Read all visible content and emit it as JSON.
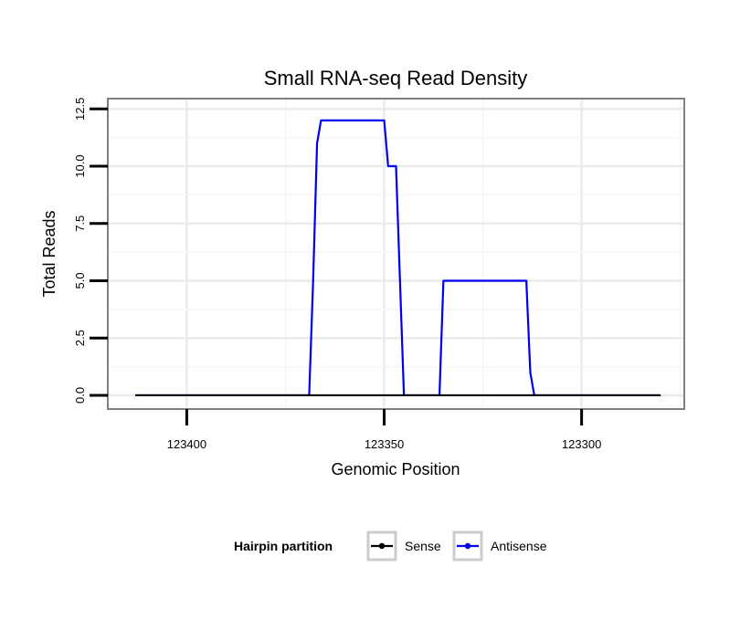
{
  "chart_data": {
    "type": "line",
    "title": "Small RNA-seq Read Density",
    "xlabel": "Genomic Position",
    "ylabel": "Total Reads",
    "x_reversed": true,
    "xlim": [
      123420,
      123274
    ],
    "ylim": [
      -0.6,
      12.95
    ],
    "x_ticks": [
      123400,
      123350,
      123300
    ],
    "x_tick_labels": [
      "123400",
      "123350",
      "123300"
    ],
    "y_ticks": [
      0,
      2.5,
      5,
      7.5,
      10,
      12.5
    ],
    "y_tick_labels": [
      "0.0",
      "2.5",
      "5.0",
      "7.5",
      "10.0",
      "12.5"
    ],
    "grid": true,
    "legend": {
      "title": "Hairpin partition",
      "position": "bottom"
    },
    "series": [
      {
        "name": "Sense",
        "color": "#000000",
        "x": [
          123413,
          123280
        ],
        "y": [
          0,
          0
        ]
      },
      {
        "name": "Antisense",
        "color": "#0000ee",
        "x": [
          123413,
          123369,
          123368,
          123367,
          123366,
          123351,
          123350,
          123349,
          123347,
          123346,
          123345,
          123336,
          123335,
          123334,
          123324,
          123314,
          123313,
          123312,
          123280
        ],
        "y": [
          0,
          0,
          5,
          11,
          12,
          12,
          12,
          10,
          10,
          5,
          0,
          0,
          5,
          5,
          5,
          5,
          1,
          0,
          0
        ]
      }
    ]
  }
}
